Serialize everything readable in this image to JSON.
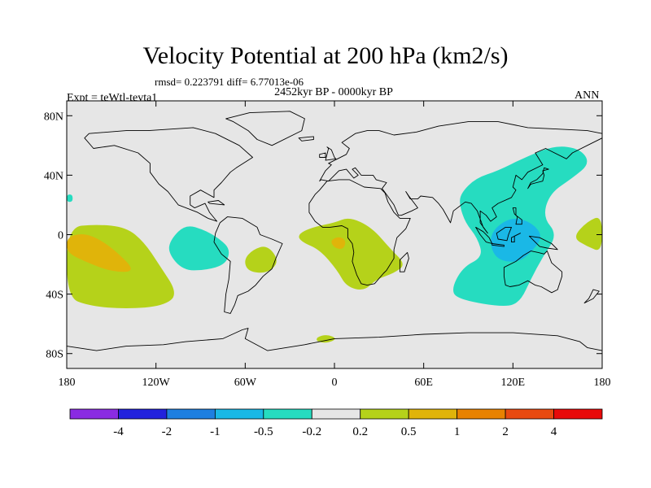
{
  "figure": {
    "title": "Velocity Potential at 200 hPa (km2/s)",
    "stats_line": "rmsd= 0.223791 diff= 6.77013e-06",
    "experiment": "Expt = teWtl-tevta1",
    "period": "2452kyr BP - 0000kyr BP",
    "season": "ANN"
  },
  "chart_data": {
    "type": "heatmap",
    "projection": "cylindrical equidistant",
    "units": "km2/s",
    "xlim": [
      -180,
      180
    ],
    "ylim": [
      -90,
      90
    ],
    "xticks": [
      {
        "value": -180,
        "label": "180"
      },
      {
        "value": -120,
        "label": "120W"
      },
      {
        "value": -60,
        "label": "60W"
      },
      {
        "value": 0,
        "label": "0"
      },
      {
        "value": 60,
        "label": "60E"
      },
      {
        "value": 120,
        "label": "120E"
      },
      {
        "value": 180,
        "label": "180"
      }
    ],
    "yticks": [
      {
        "value": 80,
        "label": "80N"
      },
      {
        "value": 40,
        "label": "40N"
      },
      {
        "value": 0,
        "label": "0"
      },
      {
        "value": -40,
        "label": "40S"
      },
      {
        "value": -80,
        "label": "80S"
      }
    ],
    "background_color": "#e6e6e6",
    "colorbar": {
      "colors": [
        "#8a2be2",
        "#2222dd",
        "#1e7fe0",
        "#1ab8e6",
        "#26dcc0",
        "#e6e6e6",
        "#b5d21a",
        "#e0b40a",
        "#e88200",
        "#e84a10",
        "#e80a0a"
      ],
      "labels": [
        "-4",
        "-2",
        "-1",
        "-0.5",
        "-0.2",
        "0.2",
        "0.5",
        "1",
        "2",
        "4"
      ]
    },
    "regions": [
      {
        "value": "0.2 to 0.5",
        "color": "#b5d21a",
        "points": [
          [
            -180,
            5
          ],
          [
            -160,
            7
          ],
          [
            -140,
            5
          ],
          [
            -128,
            -5
          ],
          [
            -118,
            -20
          ],
          [
            -105,
            -40
          ],
          [
            -115,
            -48
          ],
          [
            -140,
            -50
          ],
          [
            -165,
            -48
          ],
          [
            -180,
            -42
          ]
        ]
      },
      {
        "value": "0.5 to 1",
        "color": "#e0b40a",
        "points": [
          [
            -180,
            -2
          ],
          [
            -170,
            1
          ],
          [
            -160,
            -2
          ],
          [
            -148,
            -10
          ],
          [
            -133,
            -25
          ],
          [
            -150,
            -25
          ],
          [
            -168,
            -18
          ],
          [
            -180,
            -12
          ]
        ]
      },
      {
        "value": "-0.5 to -0.2",
        "color": "#26dcc0",
        "points": [
          [
            -110,
            -3
          ],
          [
            -100,
            7
          ],
          [
            -87,
            3
          ],
          [
            -77,
            -3
          ],
          [
            -70,
            -10
          ],
          [
            -73,
            -20
          ],
          [
            -87,
            -24
          ],
          [
            -102,
            -24
          ],
          [
            -112,
            -12
          ]
        ]
      },
      {
        "value": "0.2 to 0.5",
        "color": "#b5d21a",
        "points": [
          [
            -55,
            -10
          ],
          [
            -45,
            -7
          ],
          [
            -37,
            -18
          ],
          [
            -45,
            -26
          ],
          [
            -58,
            -25
          ],
          [
            -61,
            -17
          ]
        ]
      },
      {
        "value": "0.2 to 0.5",
        "color": "#b5d21a",
        "points": [
          [
            -25,
            0
          ],
          [
            -15,
            5
          ],
          [
            0,
            8
          ],
          [
            10,
            12
          ],
          [
            25,
            5
          ],
          [
            38,
            -10
          ],
          [
            48,
            -20
          ],
          [
            40,
            -26
          ],
          [
            28,
            -30
          ],
          [
            20,
            -38
          ],
          [
            8,
            -35
          ],
          [
            2,
            -24
          ],
          [
            -10,
            -10
          ],
          [
            -22,
            -5
          ]
        ]
      },
      {
        "value": "0.5 to 1",
        "color": "#e0b40a",
        "points": [
          [
            -3,
            -4
          ],
          [
            3,
            -1
          ],
          [
            8,
            -4
          ],
          [
            6,
            -10
          ],
          [
            0,
            -9
          ]
        ]
      },
      {
        "value": "-0.5 to -0.2",
        "color": "#26dcc0",
        "points": [
          [
            85,
            28
          ],
          [
            95,
            38
          ],
          [
            110,
            43
          ],
          [
            128,
            52
          ],
          [
            148,
            60
          ],
          [
            165,
            58
          ],
          [
            172,
            48
          ],
          [
            160,
            38
          ],
          [
            145,
            28
          ],
          [
            140,
            12
          ],
          [
            150,
            0
          ],
          [
            140,
            -15
          ],
          [
            132,
            -30
          ],
          [
            125,
            -45
          ],
          [
            115,
            -49
          ],
          [
            85,
            -44
          ],
          [
            78,
            -38
          ],
          [
            86,
            -22
          ],
          [
            100,
            -15
          ],
          [
            96,
            -2
          ],
          [
            88,
            8
          ],
          [
            84,
            20
          ]
        ]
      },
      {
        "value": "-1 to -0.5",
        "color": "#1ab8e6",
        "points": [
          [
            108,
            5
          ],
          [
            120,
            12
          ],
          [
            133,
            8
          ],
          [
            140,
            -1
          ],
          [
            134,
            -10
          ],
          [
            124,
            -19
          ],
          [
            109,
            -17
          ],
          [
            104,
            -5
          ]
        ]
      },
      {
        "value": "0.2 to 0.5",
        "color": "#b5d21a",
        "points": [
          [
            160,
            -2
          ],
          [
            170,
            9
          ],
          [
            180,
            13
          ],
          [
            180,
            -12
          ],
          [
            170,
            -8
          ]
        ]
      },
      {
        "value": "-0.5 to -0.2",
        "color": "#26dcc0",
        "points": [
          [
            -180,
            27
          ],
          [
            -176,
            27
          ],
          [
            -176,
            22
          ],
          [
            -180,
            22
          ]
        ]
      },
      {
        "value": "0.2 to 0.5",
        "color": "#b5d21a",
        "points": [
          [
            -12,
            -69
          ],
          [
            -5,
            -67
          ],
          [
            2,
            -70
          ],
          [
            -5,
            -73
          ],
          [
            -12,
            -72
          ]
        ]
      }
    ]
  }
}
